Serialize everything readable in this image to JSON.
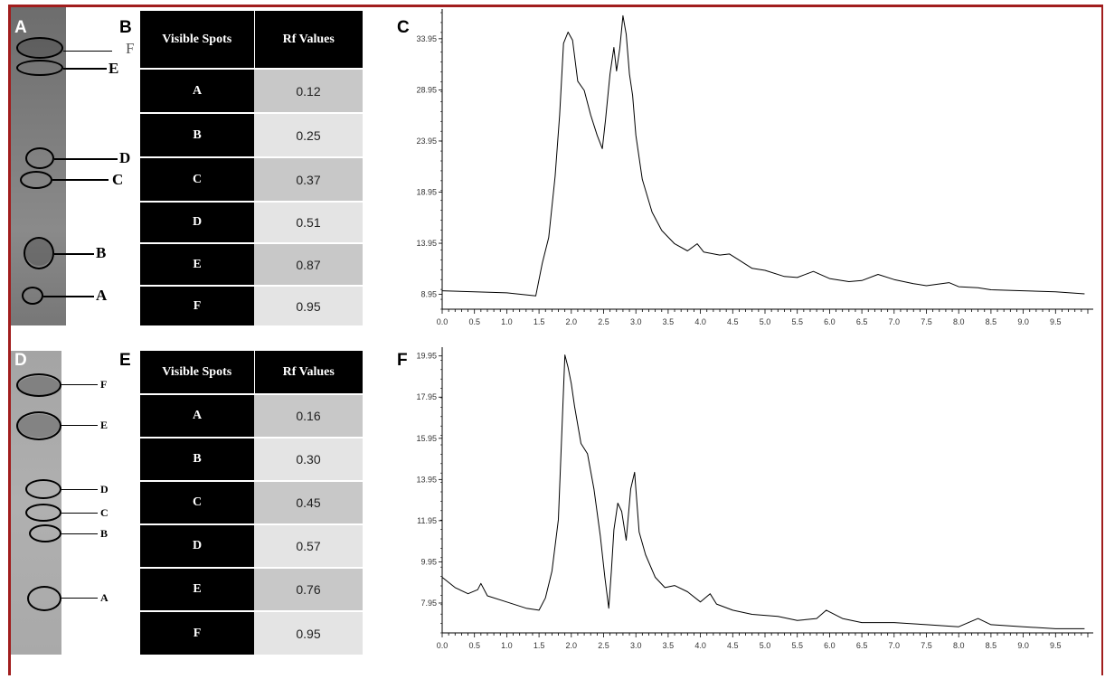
{
  "panels": {
    "a": {
      "letter": "A"
    },
    "b": {
      "letter": "B"
    },
    "c": {
      "letter": "C"
    },
    "d": {
      "letter": "D"
    },
    "e": {
      "letter": "E"
    },
    "f": {
      "letter": "F"
    }
  },
  "plate_top": {
    "labels": [
      "F",
      "E",
      "D",
      "C",
      "B",
      "A"
    ]
  },
  "plate_bottom": {
    "labels": [
      "F",
      "E",
      "D",
      "C",
      "B",
      "A"
    ]
  },
  "table_top": {
    "header_spots": "Visible Spots",
    "header_rf": "Rf Values",
    "rows": [
      {
        "spot": "A",
        "rf": "0.12"
      },
      {
        "spot": "B",
        "rf": "0.25"
      },
      {
        "spot": "C",
        "rf": "0.37"
      },
      {
        "spot": "D",
        "rf": "0.51"
      },
      {
        "spot": "E",
        "rf": "0.87"
      },
      {
        "spot": "F",
        "rf": "0.95"
      }
    ]
  },
  "table_bottom": {
    "header_spots": "Visible Spots",
    "header_rf": "Rf Values",
    "rows": [
      {
        "spot": "A",
        "rf": "0.16"
      },
      {
        "spot": "B",
        "rf": "0.30"
      },
      {
        "spot": "C",
        "rf": "0.45"
      },
      {
        "spot": "D",
        "rf": "0.57"
      },
      {
        "spot": "E",
        "rf": "0.76"
      },
      {
        "spot": "F",
        "rf": "0.95"
      }
    ]
  },
  "chart_data": [
    {
      "type": "line",
      "title": "",
      "xlabel": "",
      "ylabel": "",
      "xlim": [
        0,
        10
      ],
      "ylim": [
        7.5,
        36.5
      ],
      "xticks": [
        "0.0",
        "0.5",
        "1.0",
        "1.5",
        "2.0",
        "2.5",
        "3.0",
        "3.5",
        "4.0",
        "4.5",
        "5.0",
        "5.5",
        "6.0",
        "6.5",
        "7.0",
        "7.5",
        "8.0",
        "8.5",
        "9.0",
        "9.5"
      ],
      "yticks": [
        "8.95",
        "13.95",
        "18.95",
        "23.95",
        "28.95",
        "33.95"
      ],
      "grid": false,
      "series": [
        {
          "x": [
            0.0,
            0.5,
            1.0,
            1.45,
            1.55,
            1.65,
            1.75,
            1.82,
            1.88,
            1.95,
            2.02,
            2.1,
            2.2,
            2.3,
            2.4,
            2.48,
            2.53,
            2.6,
            2.66,
            2.7,
            2.75,
            2.8,
            2.85,
            2.9,
            2.95,
            3.0,
            3.1,
            3.25,
            3.4,
            3.6,
            3.8,
            3.95,
            4.05,
            4.3,
            4.45,
            4.6,
            4.8,
            5.0,
            5.3,
            5.5,
            5.75,
            6.0,
            6.3,
            6.5,
            6.75,
            7.0,
            7.3,
            7.5,
            7.85,
            8.0,
            8.3,
            8.5,
            9.0,
            9.5,
            9.95
          ],
          "y": [
            9.3,
            9.2,
            9.1,
            8.8,
            12.0,
            14.5,
            20.5,
            26.5,
            33.5,
            34.6,
            33.8,
            29.8,
            28.9,
            26.5,
            24.5,
            23.2,
            26.0,
            30.5,
            33.1,
            30.8,
            33.0,
            36.2,
            34.4,
            30.5,
            28.4,
            24.5,
            20.2,
            17.0,
            15.2,
            13.9,
            13.2,
            13.9,
            13.1,
            12.8,
            12.9,
            12.3,
            11.5,
            11.3,
            10.7,
            10.6,
            11.2,
            10.5,
            10.2,
            10.3,
            10.9,
            10.4,
            10.0,
            9.8,
            10.1,
            9.7,
            9.6,
            9.4,
            9.3,
            9.2,
            9.0
          ]
        }
      ]
    },
    {
      "type": "line",
      "title": "",
      "xlabel": "",
      "ylabel": "",
      "xlim": [
        0,
        10
      ],
      "ylim": [
        6.5,
        20.2
      ],
      "xticks": [
        "0.0",
        "0.5",
        "1.0",
        "1.5",
        "2.0",
        "2.5",
        "3.0",
        "3.5",
        "4.0",
        "4.5",
        "5.0",
        "5.5",
        "6.0",
        "6.5",
        "7.0",
        "7.5",
        "8.0",
        "8.5",
        "9.0",
        "9.5"
      ],
      "yticks": [
        "7.95",
        "9.95",
        "11.95",
        "13.95",
        "15.95",
        "17.95",
        "19.95"
      ],
      "grid": false,
      "series": [
        {
          "x": [
            0.0,
            0.2,
            0.4,
            0.55,
            0.6,
            0.7,
            1.0,
            1.3,
            1.5,
            1.6,
            1.7,
            1.8,
            1.85,
            1.9,
            1.95,
            2.0,
            2.05,
            2.15,
            2.25,
            2.35,
            2.45,
            2.52,
            2.58,
            2.62,
            2.66,
            2.72,
            2.78,
            2.85,
            2.92,
            2.98,
            3.05,
            3.15,
            3.3,
            3.45,
            3.6,
            3.8,
            4.0,
            4.15,
            4.25,
            4.5,
            4.8,
            5.2,
            5.5,
            5.8,
            5.95,
            6.2,
            6.5,
            7.0,
            7.5,
            8.0,
            8.3,
            8.5,
            9.0,
            9.5,
            9.95
          ],
          "y": [
            9.2,
            8.7,
            8.4,
            8.6,
            8.9,
            8.3,
            8.0,
            7.7,
            7.6,
            8.2,
            9.5,
            12.0,
            16.0,
            20.0,
            19.4,
            18.6,
            17.5,
            15.7,
            15.2,
            13.5,
            11.2,
            9.2,
            7.7,
            9.5,
            11.5,
            12.8,
            12.4,
            11.0,
            13.5,
            14.3,
            11.4,
            10.3,
            9.2,
            8.7,
            8.8,
            8.5,
            8.0,
            8.4,
            7.9,
            7.6,
            7.4,
            7.3,
            7.1,
            7.2,
            7.6,
            7.2,
            7.0,
            7.0,
            6.9,
            6.8,
            7.2,
            6.9,
            6.8,
            6.7,
            6.7
          ]
        }
      ]
    }
  ]
}
